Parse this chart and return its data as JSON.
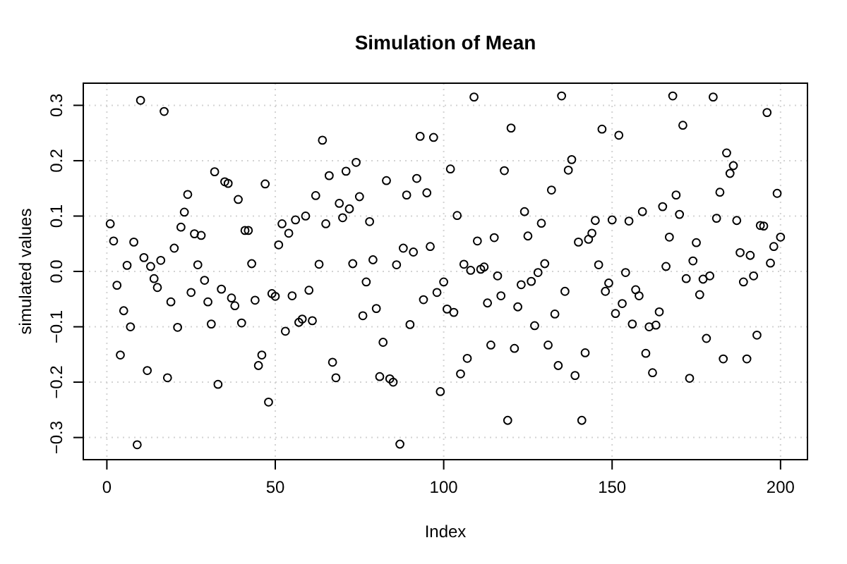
{
  "chart_data": {
    "type": "scatter",
    "title": "Simulation of Mean",
    "xlabel": "Index",
    "ylabel": "simulated values",
    "x": [
      1,
      2,
      3,
      4,
      5,
      6,
      7,
      8,
      9,
      10,
      11,
      12,
      13,
      14,
      15,
      16,
      17,
      18,
      19,
      20,
      21,
      22,
      23,
      24,
      25,
      26,
      27,
      28,
      29,
      30,
      31,
      32,
      33,
      34,
      35,
      36,
      37,
      38,
      39,
      40,
      41,
      42,
      43,
      44,
      45,
      46,
      47,
      48,
      49,
      50,
      51,
      52,
      53,
      54,
      55,
      56,
      57,
      58,
      59,
      60,
      61,
      62,
      63,
      64,
      65,
      66,
      67,
      68,
      69,
      70,
      71,
      72,
      73,
      74,
      75,
      76,
      77,
      78,
      79,
      80,
      81,
      82,
      83,
      84,
      85,
      86,
      87,
      88,
      89,
      90,
      91,
      92,
      93,
      94,
      95,
      96,
      97,
      98,
      99,
      100,
      101,
      102,
      103,
      104,
      105,
      106,
      107,
      108,
      109,
      110,
      111,
      112,
      113,
      114,
      115,
      116,
      117,
      118,
      119,
      120,
      121,
      122,
      123,
      124,
      125,
      126,
      127,
      128,
      129,
      130,
      131,
      132,
      133,
      134,
      135,
      136,
      137,
      138,
      139,
      140,
      141,
      142,
      143,
      144,
      145,
      146,
      147,
      148,
      149,
      150,
      151,
      152,
      153,
      154,
      155,
      156,
      157,
      158,
      159,
      160,
      161,
      162,
      163,
      164,
      165,
      166,
      167,
      168,
      169,
      170,
      171,
      172,
      173,
      174,
      175,
      176,
      177,
      178,
      179,
      180,
      181,
      182,
      183,
      184,
      185,
      186,
      187,
      188,
      189,
      190,
      191,
      192,
      193,
      194,
      195,
      196,
      197,
      198,
      199,
      200
    ],
    "values": [
      0.086,
      0.055,
      -0.025,
      -0.151,
      -0.071,
      0.011,
      -0.1,
      0.053,
      -0.313,
      0.309,
      0.025,
      -0.179,
      0.009,
      -0.013,
      -0.029,
      0.02,
      0.289,
      -0.192,
      -0.055,
      0.042,
      -0.101,
      0.08,
      0.107,
      0.139,
      -0.038,
      0.068,
      0.012,
      0.065,
      -0.016,
      -0.055,
      -0.095,
      0.18,
      -0.204,
      -0.032,
      0.162,
      0.159,
      -0.048,
      -0.062,
      0.13,
      -0.093,
      0.074,
      0.074,
      0.014,
      -0.052,
      -0.17,
      -0.151,
      0.158,
      -0.236,
      -0.04,
      -0.045,
      0.048,
      0.086,
      -0.108,
      0.069,
      -0.044,
      0.093,
      -0.092,
      -0.086,
      0.1,
      -0.034,
      -0.089,
      0.137,
      0.013,
      0.237,
      0.086,
      0.173,
      -0.164,
      -0.192,
      0.123,
      0.097,
      0.181,
      0.113,
      0.014,
      0.197,
      0.135,
      -0.08,
      -0.019,
      0.09,
      0.021,
      -0.067,
      -0.19,
      -0.128,
      0.164,
      -0.194,
      -0.2,
      0.012,
      -0.312,
      0.042,
      0.138,
      -0.096,
      0.035,
      0.168,
      0.244,
      -0.051,
      0.142,
      0.045,
      0.242,
      -0.038,
      -0.217,
      -0.019,
      -0.068,
      0.185,
      -0.074,
      0.101,
      -0.185,
      0.013,
      -0.157,
      0.002,
      0.315,
      0.055,
      0.004,
      0.008,
      -0.057,
      -0.133,
      0.061,
      -0.008,
      -0.044,
      0.182,
      -0.269,
      0.259,
      -0.139,
      -0.064,
      -0.024,
      0.108,
      0.064,
      -0.018,
      -0.098,
      -0.002,
      0.087,
      0.014,
      -0.133,
      0.147,
      -0.077,
      -0.17,
      0.317,
      -0.036,
      0.183,
      0.202,
      -0.188,
      0.053,
      -0.269,
      -0.147,
      0.058,
      0.069,
      0.092,
      0.012,
      0.257,
      -0.036,
      -0.021,
      0.093,
      -0.076,
      0.246,
      -0.058,
      -0.002,
      0.091,
      -0.095,
      -0.033,
      -0.044,
      0.108,
      -0.148,
      -0.1,
      -0.183,
      -0.097,
      -0.073,
      0.117,
      0.009,
      0.062,
      0.317,
      0.138,
      0.103,
      0.264,
      -0.013,
      -0.193,
      0.019,
      0.052,
      -0.042,
      -0.014,
      -0.121,
      -0.008,
      0.315,
      0.096,
      0.143,
      -0.158,
      0.214,
      0.177,
      0.191,
      0.092,
      0.034,
      -0.019,
      -0.158,
      0.029,
      -0.008,
      -0.115,
      0.083,
      0.082,
      0.287,
      0.015,
      0.045,
      0.141,
      0.062
    ],
    "color": "#000000",
    "marker": "circle",
    "xlim": [
      -7,
      208
    ],
    "ylim": [
      -0.34,
      0.34
    ],
    "xticks": [
      0,
      50,
      100,
      150,
      200
    ],
    "yticks": [
      {
        "value": -0.3,
        "label": "−0.3"
      },
      {
        "value": -0.2,
        "label": "−0.2"
      },
      {
        "value": -0.1,
        "label": "−0.1"
      },
      {
        "value": 0,
        "label": "0.0"
      },
      0.1,
      0.2,
      0.3
    ],
    "grid": true
  }
}
